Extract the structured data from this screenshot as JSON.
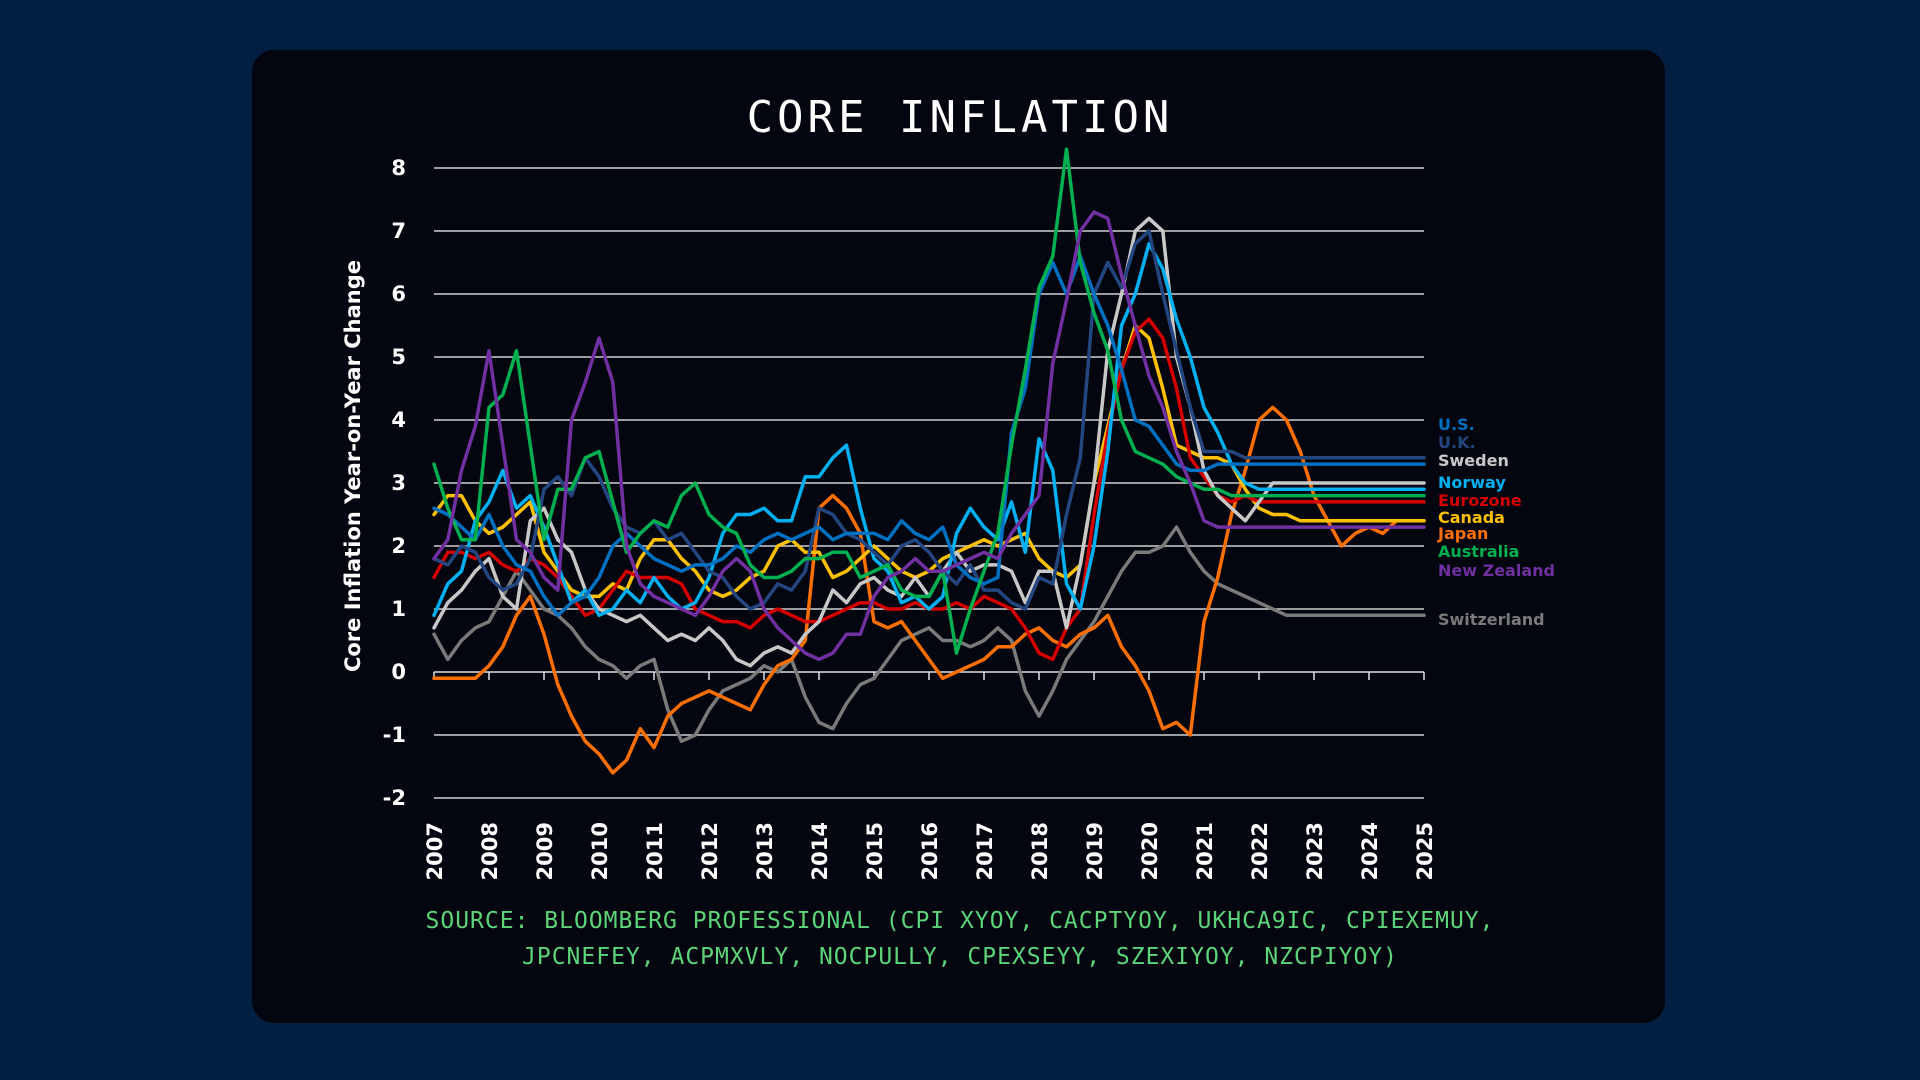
{
  "page": {
    "background": "#021e40",
    "card_background": "#03050f"
  },
  "chart_data": {
    "type": "line",
    "title": "CORE INFLATION",
    "xlabel": "",
    "ylabel": "Core Inflation Year-on-Year Change",
    "xlim": [
      2007,
      2025
    ],
    "ylim": [
      -2,
      8
    ],
    "x_ticks": [
      "2007",
      "2008",
      "2009",
      "2010",
      "2011",
      "2012",
      "2013",
      "2014",
      "2015",
      "2016",
      "2017",
      "2018",
      "2019",
      "2020",
      "2021",
      "2022",
      "2023",
      "2024",
      "2025"
    ],
    "y_ticks": [
      "8",
      "7",
      "6",
      "5",
      "4",
      "3",
      "2",
      "1",
      "0",
      "-1",
      "-2"
    ],
    "y_tick_values": [
      8,
      7,
      6,
      5,
      4,
      3,
      2,
      1,
      0,
      -1,
      -2
    ],
    "grid": "horizontal",
    "legend_placement": "right",
    "x_start": 2007,
    "x_step": 0.25,
    "series": [
      {
        "name": "Switzerland",
        "color": "#7a7a7a",
        "values": [
          0.6,
          0.2,
          0.5,
          0.7,
          0.8,
          1.2,
          1.6,
          1.3,
          1.0,
          0.9,
          0.7,
          0.4,
          0.2,
          0.1,
          -0.1,
          0.1,
          0.2,
          -0.6,
          -1.1,
          -1.0,
          -0.6,
          -0.3,
          -0.2,
          -0.1,
          0.1,
          0.0,
          0.2,
          -0.4,
          -0.8,
          -0.9,
          -0.5,
          -0.2,
          -0.1,
          0.2,
          0.5,
          0.6,
          0.7,
          0.5,
          0.5,
          0.4,
          0.5,
          0.7,
          0.5,
          -0.3,
          -0.7,
          -0.3,
          0.2,
          0.5,
          0.8,
          1.2,
          1.6,
          1.9,
          1.9,
          2.0,
          2.3,
          1.9,
          1.6,
          1.4,
          1.3,
          1.2,
          1.1,
          1.0,
          0.9,
          0.9,
          0.9,
          0.9,
          0.9,
          0.9,
          0.9,
          0.9,
          0.9,
          0.9,
          0.9
        ]
      },
      {
        "name": "Japan",
        "color": "#ff6f00",
        "values": [
          -0.1,
          -0.1,
          -0.1,
          -0.1,
          0.1,
          0.4,
          0.9,
          1.2,
          0.6,
          -0.2,
          -0.7,
          -1.1,
          -1.3,
          -1.6,
          -1.4,
          -0.9,
          -1.2,
          -0.7,
          -0.5,
          -0.4,
          -0.3,
          -0.4,
          -0.5,
          -0.6,
          -0.2,
          0.1,
          0.2,
          0.5,
          2.6,
          2.8,
          2.6,
          2.2,
          0.8,
          0.7,
          0.8,
          0.5,
          0.2,
          -0.1,
          0.0,
          0.1,
          0.2,
          0.4,
          0.4,
          0.6,
          0.7,
          0.5,
          0.4,
          0.6,
          0.7,
          0.9,
          0.4,
          0.1,
          -0.3,
          -0.9,
          -0.8,
          -1.0,
          0.8,
          1.5,
          2.5,
          3.2,
          4.0,
          4.2,
          4.0,
          3.5,
          2.8,
          2.4,
          2.0,
          2.2,
          2.3,
          2.2,
          2.4,
          2.4,
          2.4
        ]
      },
      {
        "name": "Canada",
        "color": "#ffc000",
        "values": [
          2.5,
          2.8,
          2.8,
          2.4,
          2.2,
          2.3,
          2.5,
          2.7,
          1.9,
          1.6,
          1.3,
          1.2,
          1.2,
          1.4,
          1.3,
          1.8,
          2.1,
          2.1,
          1.8,
          1.6,
          1.3,
          1.2,
          1.3,
          1.5,
          1.6,
          2.0,
          2.1,
          1.9,
          1.9,
          1.5,
          1.6,
          1.8,
          2.0,
          1.8,
          1.6,
          1.5,
          1.6,
          1.8,
          1.9,
          2.0,
          2.1,
          2.0,
          2.1,
          2.2,
          1.8,
          1.6,
          1.5,
          1.7,
          3.0,
          3.9,
          4.8,
          5.5,
          5.3,
          4.5,
          3.6,
          3.5,
          3.4,
          3.4,
          3.3,
          2.9,
          2.6,
          2.5,
          2.5,
          2.4,
          2.4,
          2.4,
          2.4,
          2.4,
          2.4,
          2.4,
          2.4,
          2.4,
          2.4
        ]
      },
      {
        "name": "Eurozone",
        "color": "#d40000",
        "values": [
          1.5,
          1.9,
          1.9,
          1.8,
          1.9,
          1.7,
          1.6,
          1.8,
          1.7,
          1.5,
          1.2,
          0.9,
          1.0,
          1.3,
          1.6,
          1.5,
          1.5,
          1.5,
          1.4,
          1.0,
          0.9,
          0.8,
          0.8,
          0.7,
          0.9,
          1.0,
          0.9,
          0.8,
          0.8,
          0.9,
          1.0,
          1.1,
          1.1,
          1.0,
          1.0,
          1.1,
          1.0,
          1.0,
          1.1,
          1.0,
          1.2,
          1.1,
          1.0,
          0.7,
          0.3,
          0.2,
          0.7,
          1.0,
          2.5,
          3.8,
          4.8,
          5.4,
          5.6,
          5.3,
          4.5,
          3.4,
          3.1,
          2.8,
          2.7,
          2.8,
          2.7,
          2.7,
          2.7,
          2.7,
          2.7,
          2.7,
          2.7,
          2.7,
          2.7,
          2.7,
          2.7,
          2.7,
          2.7
        ]
      },
      {
        "name": "Sweden",
        "color": "#c8c8c8",
        "values": [
          0.7,
          1.1,
          1.3,
          1.6,
          1.8,
          1.2,
          1.0,
          2.4,
          2.6,
          2.1,
          1.9,
          1.3,
          1.0,
          0.9,
          0.8,
          0.9,
          0.7,
          0.5,
          0.6,
          0.5,
          0.7,
          0.5,
          0.2,
          0.1,
          0.3,
          0.4,
          0.3,
          0.6,
          0.8,
          1.3,
          1.1,
          1.4,
          1.5,
          1.3,
          1.2,
          1.5,
          1.2,
          1.6,
          1.9,
          1.6,
          1.7,
          1.7,
          1.6,
          1.1,
          1.6,
          1.6,
          0.7,
          1.7,
          3.0,
          5.1,
          6.0,
          7.0,
          7.2,
          7.0,
          5.0,
          4.2,
          3.2,
          2.8,
          2.6,
          2.4,
          2.7,
          3.0,
          3.0,
          3.0,
          3.0,
          3.0,
          3.0,
          3.0,
          3.0,
          3.0,
          3.0,
          3.0,
          3.0
        ]
      },
      {
        "name": "Norway",
        "color": "#00b0f0",
        "values": [
          0.9,
          1.4,
          1.6,
          2.4,
          2.7,
          3.2,
          2.6,
          2.8,
          2.3,
          1.7,
          1.1,
          1.3,
          0.9,
          1.0,
          1.3,
          1.1,
          1.5,
          1.2,
          1.0,
          1.1,
          1.5,
          2.2,
          2.5,
          2.5,
          2.6,
          2.4,
          2.4,
          3.1,
          3.1,
          3.4,
          3.6,
          2.6,
          1.8,
          1.6,
          1.1,
          1.2,
          1.0,
          1.2,
          2.2,
          2.6,
          2.3,
          2.1,
          2.7,
          1.9,
          3.7,
          3.2,
          1.4,
          1.0,
          2.0,
          3.5,
          5.5,
          6.0,
          6.8,
          6.4,
          5.6,
          5.0,
          4.2,
          3.8,
          3.3,
          3.0,
          2.9,
          2.9,
          2.9,
          2.9,
          2.9,
          2.9,
          2.9,
          2.9,
          2.9,
          2.9,
          2.9,
          2.9,
          2.9
        ]
      },
      {
        "name": "U.K.",
        "color": "#24467f",
        "values": [
          1.8,
          1.7,
          2.0,
          1.9,
          1.5,
          1.3,
          1.4,
          1.8,
          2.9,
          3.1,
          2.8,
          3.4,
          3.1,
          2.6,
          2.3,
          2.2,
          2.4,
          2.1,
          2.2,
          1.9,
          1.6,
          1.5,
          1.2,
          1.0,
          1.1,
          1.4,
          1.3,
          1.6,
          2.6,
          2.5,
          2.2,
          2.1,
          1.9,
          1.7,
          2.0,
          2.1,
          1.9,
          1.6,
          1.4,
          1.7,
          1.3,
          1.3,
          1.1,
          1.0,
          1.5,
          1.4,
          2.5,
          3.4,
          6.0,
          6.5,
          6.1,
          6.8,
          7.0,
          6.0,
          5.1,
          4.2,
          3.5,
          3.5,
          3.5,
          3.4,
          3.4,
          3.4,
          3.4,
          3.4,
          3.4,
          3.4,
          3.4,
          3.4,
          3.4,
          3.4,
          3.4,
          3.4,
          3.4
        ]
      },
      {
        "name": "U.S.",
        "color": "#0070c0",
        "values": [
          2.6,
          2.5,
          2.3,
          2.1,
          2.5,
          2.0,
          1.7,
          1.6,
          1.2,
          0.9,
          1.1,
          1.2,
          1.5,
          2.0,
          2.2,
          2.0,
          1.8,
          1.7,
          1.6,
          1.7,
          1.7,
          1.8,
          2.0,
          1.9,
          2.1,
          2.2,
          2.1,
          2.2,
          2.3,
          2.1,
          2.2,
          2.2,
          2.2,
          2.1,
          2.4,
          2.2,
          2.1,
          2.3,
          1.7,
          1.5,
          1.4,
          1.5,
          3.8,
          4.5,
          6.0,
          6.5,
          6.0,
          6.6,
          6.0,
          5.5,
          4.8,
          4.0,
          3.9,
          3.6,
          3.3,
          3.2,
          3.2,
          3.3,
          3.3,
          3.3,
          3.3,
          3.3,
          3.3,
          3.3,
          3.3,
          3.3,
          3.3,
          3.3,
          3.3,
          3.3,
          3.3,
          3.3,
          3.3
        ]
      },
      {
        "name": "Australia",
        "color": "#00b050",
        "values": [
          3.3,
          2.6,
          2.1,
          2.1,
          4.2,
          4.4,
          5.1,
          3.6,
          2.1,
          2.9,
          2.9,
          3.4,
          3.5,
          2.7,
          1.9,
          2.2,
          2.4,
          2.3,
          2.8,
          3.0,
          2.5,
          2.3,
          2.2,
          1.7,
          1.5,
          1.5,
          1.6,
          1.8,
          1.8,
          1.9,
          1.9,
          1.5,
          1.6,
          1.7,
          1.3,
          1.2,
          1.2,
          1.6,
          0.3,
          1.0,
          1.6,
          2.2,
          3.6,
          4.8,
          6.1,
          6.6,
          8.3,
          6.5,
          5.7,
          5.1,
          4.0,
          3.5,
          3.4,
          3.3,
          3.1,
          3.0,
          2.9,
          2.9,
          2.8,
          2.8,
          2.8,
          2.8,
          2.8,
          2.8,
          2.8,
          2.8,
          2.8,
          2.8,
          2.8,
          2.8,
          2.8,
          2.8,
          2.8
        ]
      },
      {
        "name": "New Zealand",
        "color": "#7030a0",
        "values": [
          1.8,
          2.1,
          3.2,
          3.9,
          5.1,
          3.6,
          2.1,
          1.9,
          1.5,
          1.3,
          4.0,
          4.6,
          5.3,
          4.6,
          2.0,
          1.4,
          1.2,
          1.1,
          1.0,
          0.9,
          1.2,
          1.6,
          1.8,
          1.6,
          1.0,
          0.7,
          0.5,
          0.3,
          0.2,
          0.3,
          0.6,
          0.6,
          1.2,
          1.5,
          1.6,
          1.8,
          1.6,
          1.6,
          1.7,
          1.8,
          1.9,
          1.8,
          2.2,
          2.5,
          2.8,
          4.9,
          5.9,
          7.0,
          7.3,
          7.2,
          6.3,
          5.5,
          4.7,
          4.2,
          3.5,
          3.0,
          2.4,
          2.3,
          2.3,
          2.3,
          2.3,
          2.3,
          2.3,
          2.3,
          2.3,
          2.3,
          2.3,
          2.3,
          2.3,
          2.3,
          2.3,
          2.3,
          2.3
        ]
      }
    ],
    "legend": [
      {
        "name": "U.S.",
        "color": "#0070c0"
      },
      {
        "name": "U.K.",
        "color": "#24467f"
      },
      {
        "name": "Sweden",
        "color": "#c8c8c8"
      },
      {
        "name": "Norway",
        "color": "#00b0f0"
      },
      {
        "name": "Eurozone",
        "color": "#d40000"
      },
      {
        "name": "Canada",
        "color": "#ffc000"
      },
      {
        "name": "Japan",
        "color": "#ff6f00"
      },
      {
        "name": "Australia",
        "color": "#00b050"
      },
      {
        "name": "New Zealand",
        "color": "#7030a0"
      },
      {
        "name": "Switzerland",
        "color": "#7a7a7a"
      }
    ]
  },
  "source": {
    "line1": "SOURCE: BLOOMBERG PROFESSIONAL (CPI XYOY, CACPTYOY, UKHCA9IC, CPIEXEMUY,",
    "line2": "JPCNEFEY, ACPMXVLY, NOCPULLY, CPEXSEYY, SZEXIYOY, NZCPIYOY)",
    "color": "#5cd47a"
  }
}
